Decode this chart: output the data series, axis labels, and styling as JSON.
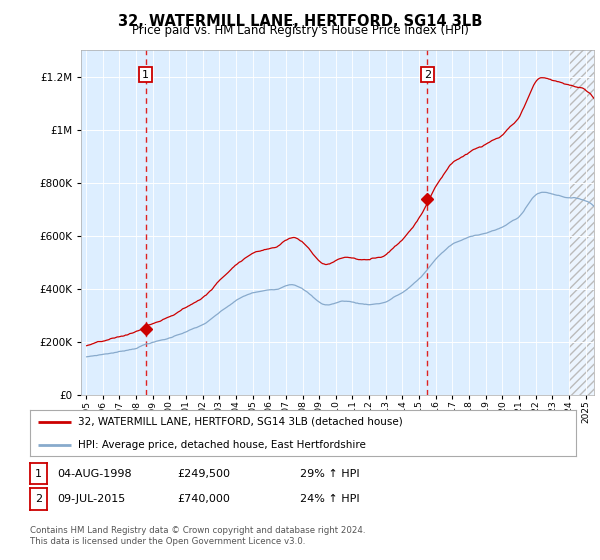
{
  "title": "32, WATERMILL LANE, HERTFORD, SG14 3LB",
  "subtitle": "Price paid vs. HM Land Registry's House Price Index (HPI)",
  "yticks": [
    0,
    200000,
    400000,
    600000,
    800000,
    1000000,
    1200000
  ],
  "ylim": [
    0,
    1300000
  ],
  "xlim_min": 1994.7,
  "xlim_max": 2025.5,
  "sale1_x": 1998.583,
  "sale1_y": 249500,
  "sale1_label": "1",
  "sale1_date": "04-AUG-1998",
  "sale1_price": "£249,500",
  "sale1_hpi": "29% ↑ HPI",
  "sale2_x": 2015.5,
  "sale2_y": 740000,
  "sale2_label": "2",
  "sale2_date": "09-JUL-2015",
  "sale2_price": "£740,000",
  "sale2_hpi": "24% ↑ HPI",
  "red_line_color": "#cc0000",
  "blue_line_color": "#88aacc",
  "background_color": "#ddeeff",
  "legend_label_red": "32, WATERMILL LANE, HERTFORD, SG14 3LB (detached house)",
  "legend_label_blue": "HPI: Average price, detached house, East Hertfordshire",
  "footer": "Contains HM Land Registry data © Crown copyright and database right 2024.\nThis data is licensed under the Open Government Licence v3.0.",
  "hatch_start": 2024.0
}
